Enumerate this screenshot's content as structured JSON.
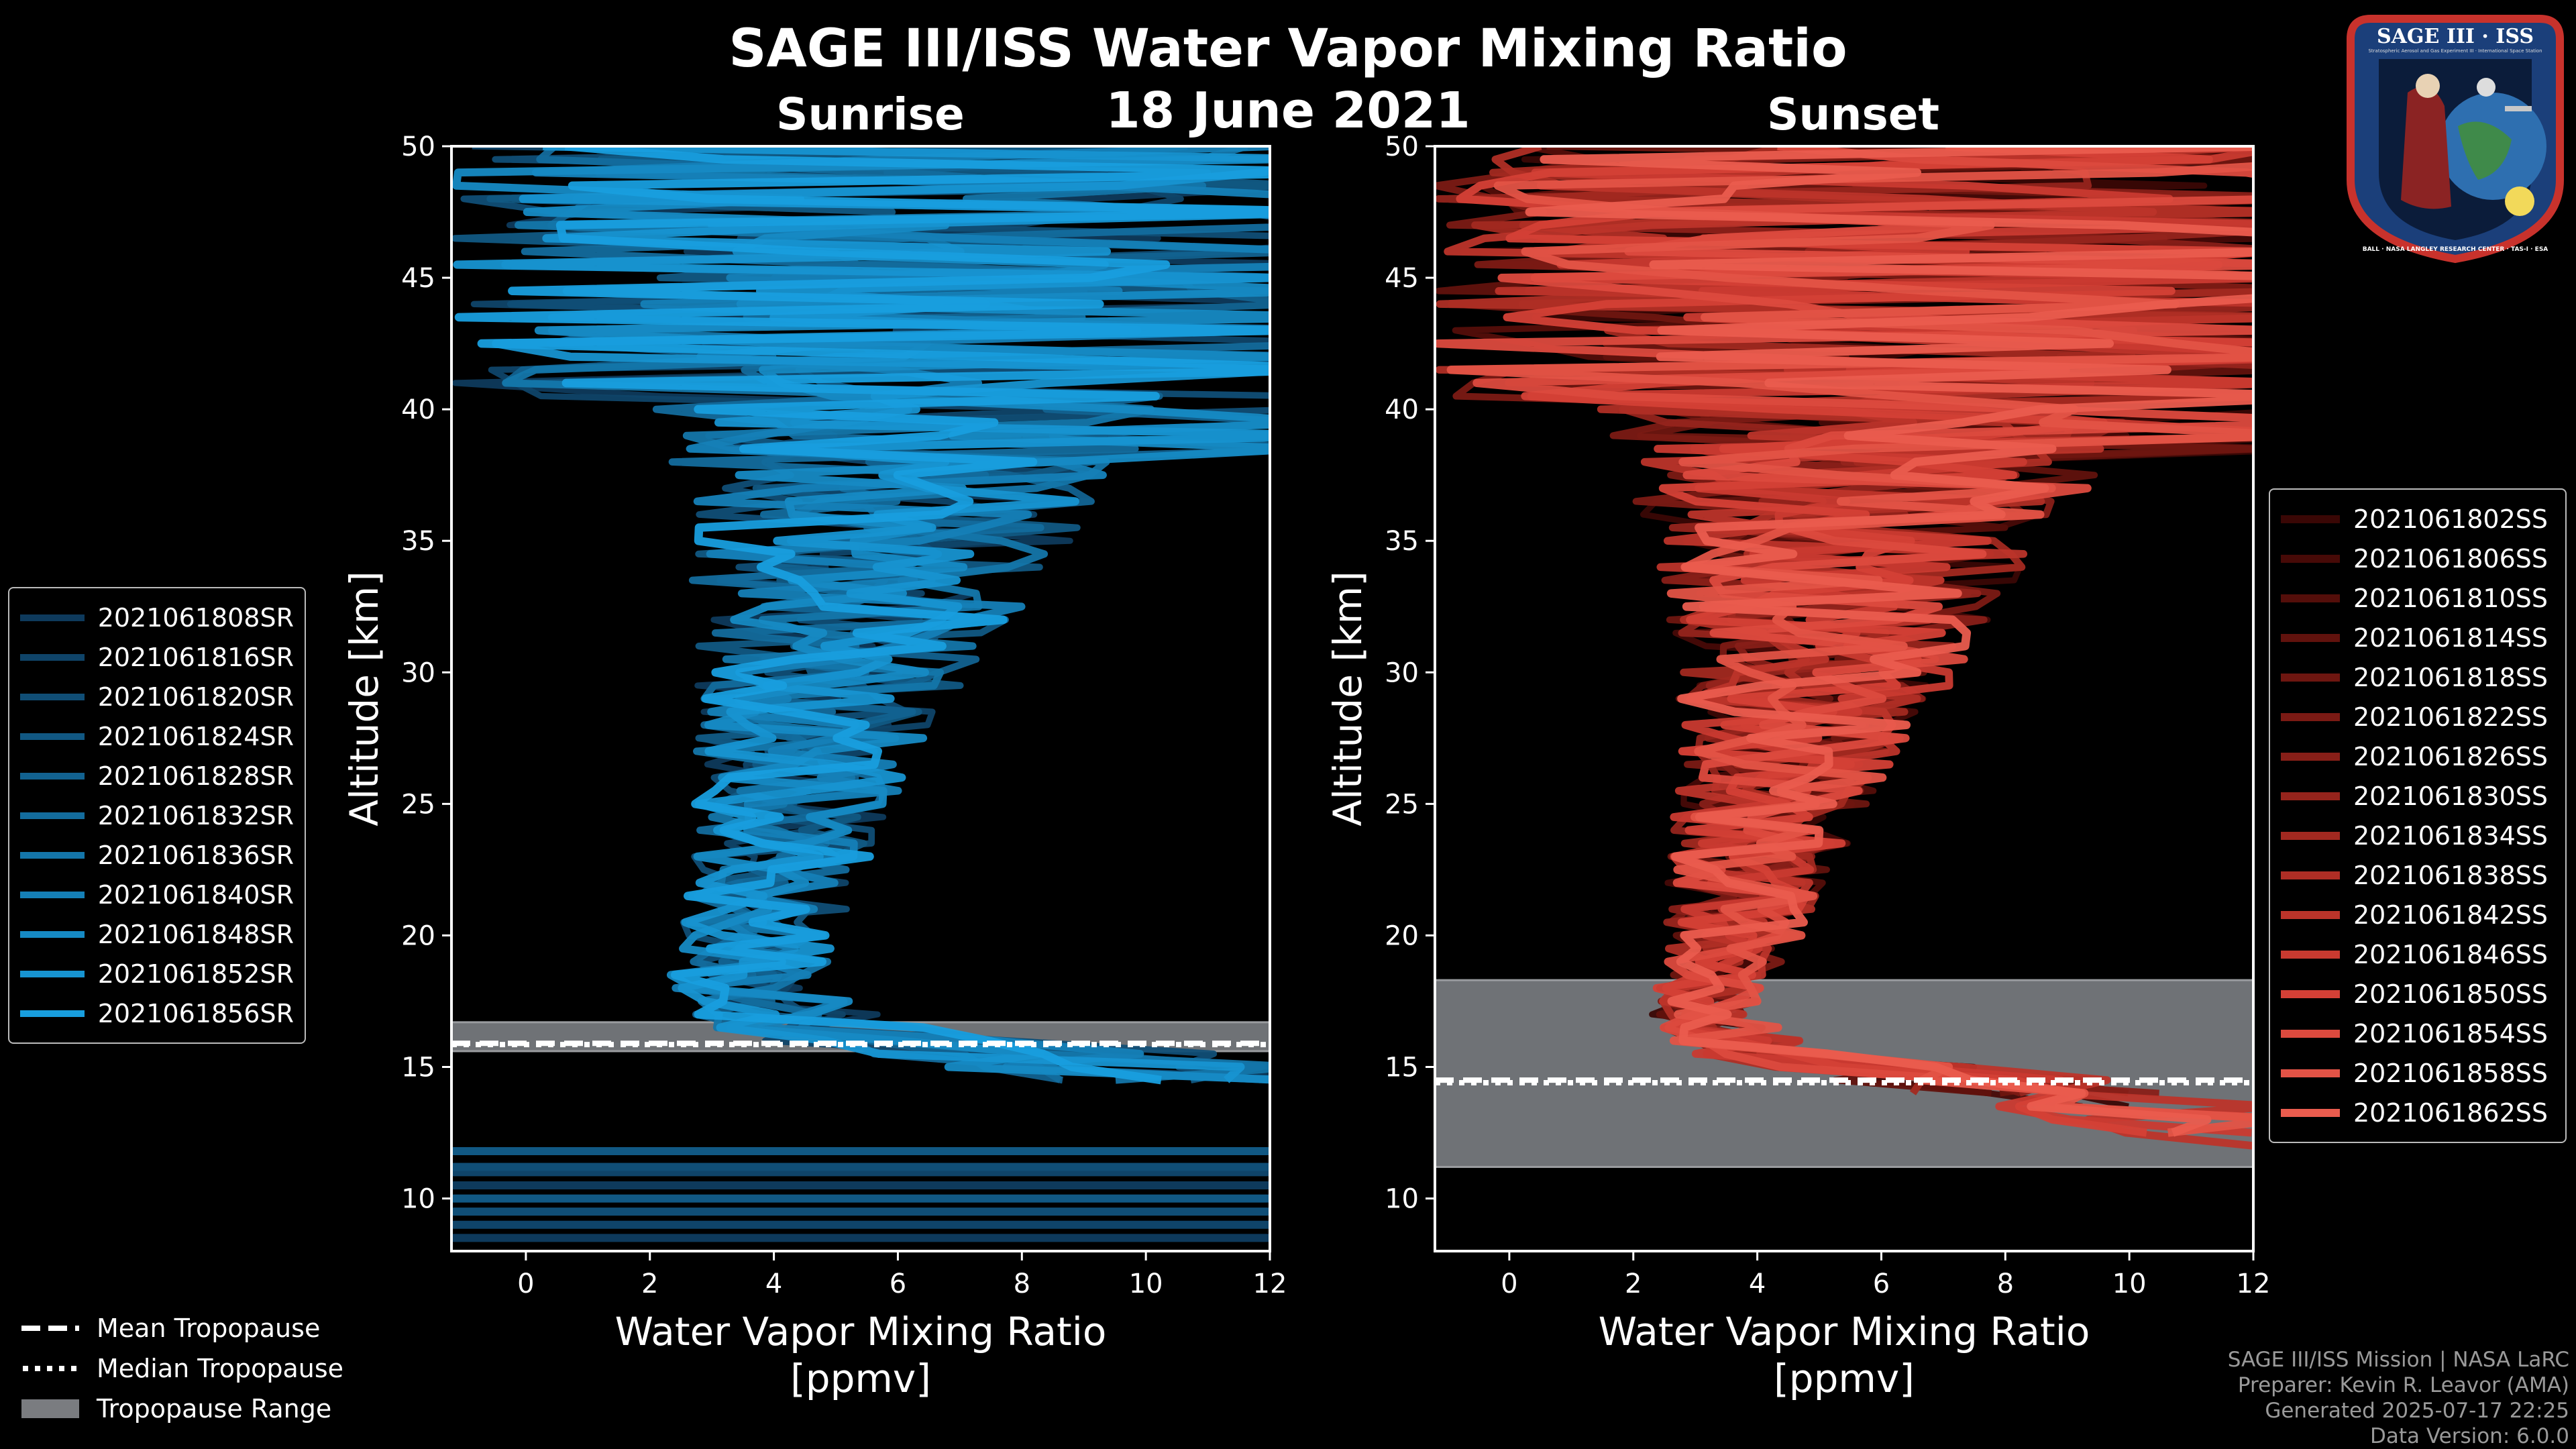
{
  "title": "SAGE III/ISS Water Vapor Mixing Ratio",
  "date": "18 June 2021",
  "colors": {
    "sunrise": "#1a8fd6",
    "sunset": "#e8584a",
    "tropo_range": "#808080"
  },
  "chart_data": [
    {
      "type": "line",
      "name": "Sunrise",
      "title": "Sunrise",
      "xlabel": "Water Vapor Mixing Ratio\n[ppmv]",
      "ylabel": "Altitude [km]",
      "xlim": [
        -1.2,
        12
      ],
      "ylim": [
        8,
        50
      ],
      "xticks": [
        0,
        2,
        4,
        6,
        8,
        10,
        12
      ],
      "yticks": [
        10,
        15,
        20,
        25,
        30,
        35,
        40,
        45,
        50
      ],
      "profile_shape_ppmv": [
        [
          50,
          6.0,
          4.0
        ],
        [
          45,
          6.0,
          3.2
        ],
        [
          40,
          6.2,
          2.6
        ],
        [
          35,
          5.6,
          2.0
        ],
        [
          30,
          5.0,
          1.4
        ],
        [
          25,
          4.3,
          1.0
        ],
        [
          20,
          3.8,
          0.8
        ],
        [
          18,
          3.4,
          0.8
        ],
        [
          16.5,
          4.5,
          1.2
        ],
        [
          15.5,
          8.0,
          2.0
        ],
        [
          14.5,
          11.0,
          2.0
        ]
      ],
      "lower_horizontal_levels_km": [
        8.5,
        9.0,
        9.5,
        10.0,
        10.5,
        11.0,
        11.2,
        11.8
      ],
      "series": [
        {
          "name": "2021061808SR",
          "color": "#0e3a5c"
        },
        {
          "name": "2021061816SR",
          "color": "#0f4469"
        },
        {
          "name": "2021061820SR",
          "color": "#104e76"
        },
        {
          "name": "2021061824SR",
          "color": "#115883"
        },
        {
          "name": "2021061828SR",
          "color": "#126290"
        },
        {
          "name": "2021061832SR",
          "color": "#136c9d"
        },
        {
          "name": "2021061836SR",
          "color": "#1476aa"
        },
        {
          "name": "2021061840SR",
          "color": "#1580b7"
        },
        {
          "name": "2021061848SR",
          "color": "#168ac4"
        },
        {
          "name": "2021061852SR",
          "color": "#1794d1"
        },
        {
          "name": "2021061856SR",
          "color": "#189ede"
        }
      ],
      "tropopause": {
        "mean": 15.9,
        "median": 15.85,
        "range": [
          15.6,
          16.7
        ]
      }
    },
    {
      "type": "line",
      "name": "Sunset",
      "title": "Sunset",
      "xlabel": "Water Vapor Mixing Ratio\n[ppmv]",
      "ylabel": "Altitude [km]",
      "xlim": [
        -1.2,
        12
      ],
      "ylim": [
        8,
        50
      ],
      "xticks": [
        0,
        2,
        4,
        6,
        8,
        10,
        12
      ],
      "yticks": [
        10,
        15,
        20,
        25,
        30,
        35,
        40,
        45,
        50
      ],
      "profile_shape_ppmv": [
        [
          50,
          6.0,
          4.2
        ],
        [
          45,
          6.0,
          3.4
        ],
        [
          40,
          5.8,
          2.8
        ],
        [
          35,
          5.5,
          2.0
        ],
        [
          30,
          5.0,
          1.4
        ],
        [
          25,
          4.2,
          1.0
        ],
        [
          20,
          3.6,
          0.7
        ],
        [
          17,
          3.1,
          0.5
        ],
        [
          15.5,
          4.0,
          0.8
        ],
        [
          14.5,
          7.5,
          1.5
        ],
        [
          13.5,
          10.0,
          1.5
        ],
        [
          12,
          12.0,
          1.0
        ]
      ],
      "series": [
        {
          "name": "2021061802SS",
          "color": "#3a0705"
        },
        {
          "name": "2021061806SS",
          "color": "#470a07"
        },
        {
          "name": "2021061810SS",
          "color": "#540e0a"
        },
        {
          "name": "2021061814SS",
          "color": "#61120d"
        },
        {
          "name": "2021061818SS",
          "color": "#6e1610"
        },
        {
          "name": "2021061822SS",
          "color": "#7b1a14"
        },
        {
          "name": "2021061826SS",
          "color": "#881f18"
        },
        {
          "name": "2021061830SS",
          "color": "#95241c"
        },
        {
          "name": "2021061834SS",
          "color": "#a22920"
        },
        {
          "name": "2021061838SS",
          "color": "#af2e25"
        },
        {
          "name": "2021061842SS",
          "color": "#bc342a"
        },
        {
          "name": "2021061846SS",
          "color": "#c93a30"
        },
        {
          "name": "2021061850SS",
          "color": "#d44036"
        },
        {
          "name": "2021061854SS",
          "color": "#dc4a3e"
        },
        {
          "name": "2021061858SS",
          "color": "#e35346"
        },
        {
          "name": "2021061862SS",
          "color": "#ea5c4e"
        }
      ],
      "tropopause": {
        "mean": 14.5,
        "median": 14.4,
        "range": [
          11.2,
          18.3
        ]
      }
    }
  ],
  "tropopause_legend": {
    "mean": "Mean Tropopause",
    "median": "Median Tropopause",
    "range": "Tropopause Range"
  },
  "footer": [
    "SAGE III/ISS Mission | NASA LaRC",
    "Preparer: Kevin R. Leavor (AMA)",
    "Generated 2025-07-17 22:25",
    "Data Version: 6.0.0"
  ],
  "logo": {
    "title": "SAGE III · ISS",
    "subtitle": "Stratospheric Aerosol and Gas Experiment III · International Space Station",
    "ring_text": "BALL · NASA LANGLEY RESEARCH CENTER · TAS-I · ESA"
  }
}
